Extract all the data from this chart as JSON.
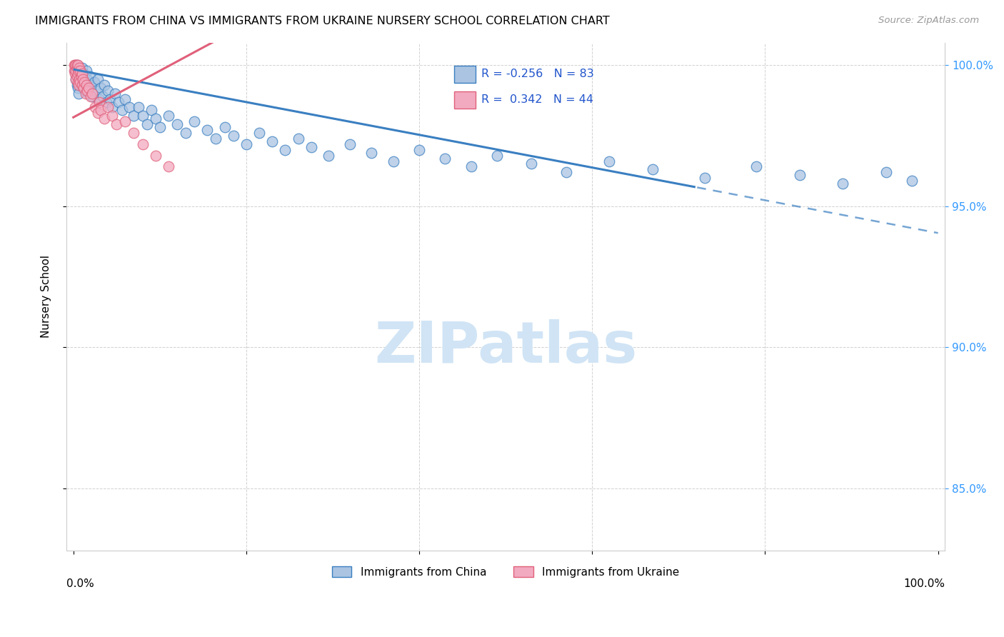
{
  "title": "IMMIGRANTS FROM CHINA VS IMMIGRANTS FROM UKRAINE NURSERY SCHOOL CORRELATION CHART",
  "source": "Source: ZipAtlas.com",
  "ylabel": "Nursery School",
  "legend_china": "Immigrants from China",
  "legend_ukraine": "Immigrants from Ukraine",
  "r_china": -0.256,
  "n_china": 83,
  "r_ukraine": 0.342,
  "n_ukraine": 44,
  "color_china": "#aac4e2",
  "color_ukraine": "#f2aac0",
  "trendline_china": "#3a7fc1",
  "trendline_ukraine": "#e0607a",
  "watermark_color": "#d0e4f5",
  "background_color": "#ffffff",
  "ytick_labels": [
    "85.0%",
    "90.0%",
    "95.0%",
    "100.0%"
  ],
  "ytick_values": [
    0.85,
    0.9,
    0.95,
    1.0
  ],
  "ymin": 0.828,
  "ymax": 1.008,
  "xmin": -0.008,
  "xmax": 1.008,
  "trend_china_intercept": 0.9985,
  "trend_china_slope": -0.058,
  "trend_china_solid_end": 0.72,
  "trend_ukraine_intercept": 0.9815,
  "trend_ukraine_slope": 0.165,
  "trend_ukraine_end": 0.72,
  "china_x": [
    0.002,
    0.003,
    0.004,
    0.004,
    0.005,
    0.005,
    0.006,
    0.006,
    0.007,
    0.007,
    0.008,
    0.008,
    0.009,
    0.01,
    0.01,
    0.011,
    0.012,
    0.012,
    0.013,
    0.014,
    0.015,
    0.015,
    0.016,
    0.017,
    0.018,
    0.019,
    0.02,
    0.022,
    0.024,
    0.026,
    0.028,
    0.03,
    0.032,
    0.034,
    0.036,
    0.038,
    0.04,
    0.042,
    0.045,
    0.048,
    0.052,
    0.056,
    0.06,
    0.065,
    0.07,
    0.075,
    0.08,
    0.085,
    0.09,
    0.095,
    0.1,
    0.11,
    0.12,
    0.13,
    0.14,
    0.155,
    0.165,
    0.175,
    0.185,
    0.2,
    0.215,
    0.23,
    0.245,
    0.26,
    0.275,
    0.295,
    0.32,
    0.345,
    0.37,
    0.4,
    0.43,
    0.46,
    0.49,
    0.53,
    0.57,
    0.62,
    0.67,
    0.73,
    0.79,
    0.84,
    0.89,
    0.94,
    0.97
  ],
  "china_y": [
    0.998,
    0.995,
    0.993,
    1.0,
    0.998,
    0.992,
    0.996,
    0.99,
    0.997,
    0.993,
    0.998,
    0.994,
    0.996,
    0.993,
    0.999,
    0.995,
    0.997,
    0.993,
    0.996,
    0.991,
    0.993,
    0.998,
    0.995,
    0.993,
    0.99,
    0.996,
    0.993,
    0.989,
    0.994,
    0.991,
    0.995,
    0.988,
    0.992,
    0.989,
    0.993,
    0.987,
    0.991,
    0.988,
    0.985,
    0.99,
    0.987,
    0.984,
    0.988,
    0.985,
    0.982,
    0.985,
    0.982,
    0.979,
    0.984,
    0.981,
    0.978,
    0.982,
    0.979,
    0.976,
    0.98,
    0.977,
    0.974,
    0.978,
    0.975,
    0.972,
    0.976,
    0.973,
    0.97,
    0.974,
    0.971,
    0.968,
    0.972,
    0.969,
    0.966,
    0.97,
    0.967,
    0.964,
    0.968,
    0.965,
    0.962,
    0.966,
    0.963,
    0.96,
    0.964,
    0.961,
    0.958,
    0.962,
    0.959
  ],
  "ukraine_x": [
    0.001,
    0.001,
    0.002,
    0.002,
    0.003,
    0.003,
    0.003,
    0.004,
    0.004,
    0.004,
    0.005,
    0.005,
    0.005,
    0.006,
    0.006,
    0.007,
    0.007,
    0.008,
    0.008,
    0.009,
    0.01,
    0.01,
    0.011,
    0.012,
    0.013,
    0.014,
    0.015,
    0.016,
    0.018,
    0.02,
    0.022,
    0.025,
    0.028,
    0.03,
    0.032,
    0.036,
    0.04,
    0.045,
    0.05,
    0.06,
    0.07,
    0.08,
    0.095,
    0.11
  ],
  "ukraine_y": [
    0.998,
    1.0,
    0.997,
    1.0,
    0.995,
    0.998,
    1.0,
    0.996,
    0.999,
    1.0,
    0.994,
    0.997,
    1.0,
    0.993,
    0.998,
    0.995,
    0.999,
    0.994,
    0.998,
    0.996,
    0.993,
    0.997,
    0.995,
    0.992,
    0.994,
    0.99,
    0.993,
    0.991,
    0.992,
    0.989,
    0.99,
    0.985,
    0.983,
    0.987,
    0.984,
    0.981,
    0.985,
    0.982,
    0.979,
    0.98,
    0.976,
    0.972,
    0.968,
    0.964
  ]
}
